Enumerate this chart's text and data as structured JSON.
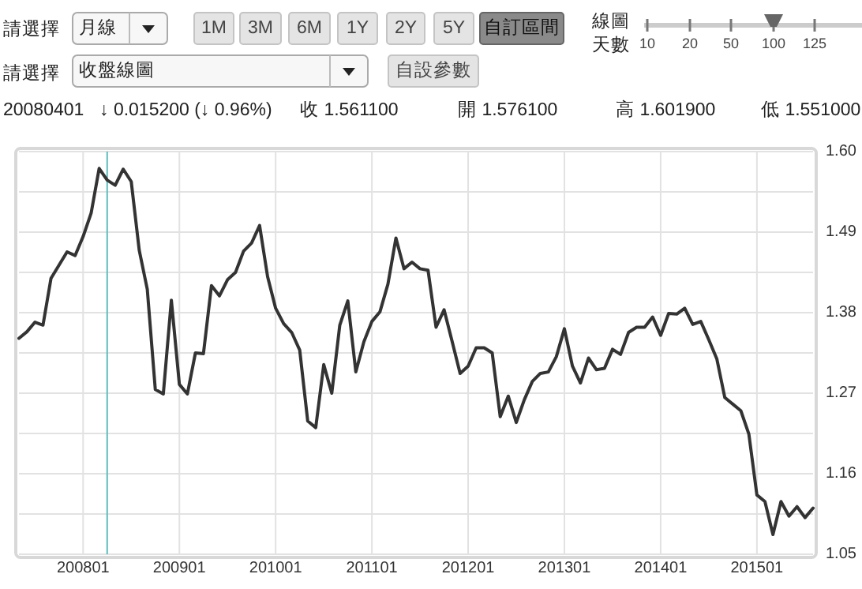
{
  "chart_data": {
    "type": "line",
    "x": [
      "2007-05",
      "2007-06",
      "2007-07",
      "2007-08",
      "2007-09",
      "2007-10",
      "2007-11",
      "2007-12",
      "2008-01",
      "2008-02",
      "2008-03",
      "2008-04",
      "2008-05",
      "2008-06",
      "2008-07",
      "2008-08",
      "2008-09",
      "2008-10",
      "2008-11",
      "2008-12",
      "2009-01",
      "2009-02",
      "2009-03",
      "2009-04",
      "2009-05",
      "2009-06",
      "2009-07",
      "2009-08",
      "2009-09",
      "2009-10",
      "2009-11",
      "2009-12",
      "2010-01",
      "2010-02",
      "2010-03",
      "2010-04",
      "2010-05",
      "2010-06",
      "2010-07",
      "2010-08",
      "2010-09",
      "2010-10",
      "2010-11",
      "2010-12",
      "2011-01",
      "2011-02",
      "2011-03",
      "2011-04",
      "2011-05",
      "2011-06",
      "2011-07",
      "2011-08",
      "2011-09",
      "2011-10",
      "2011-11",
      "2011-12",
      "2012-01",
      "2012-02",
      "2012-03",
      "2012-04",
      "2012-05",
      "2012-06",
      "2012-07",
      "2012-08",
      "2012-09",
      "2012-10",
      "2012-11",
      "2012-12",
      "2013-01",
      "2013-02",
      "2013-03",
      "2013-04",
      "2013-05",
      "2013-06",
      "2013-07",
      "2013-08",
      "2013-09",
      "2013-10",
      "2013-11",
      "2013-12",
      "2014-01",
      "2014-02",
      "2014-03",
      "2014-04",
      "2014-05",
      "2014-06",
      "2014-07",
      "2014-08",
      "2014-09",
      "2014-10",
      "2014-11",
      "2014-12",
      "2015-01",
      "2015-02",
      "2015-03",
      "2015-04",
      "2015-05",
      "2015-06",
      "2015-07",
      "2015-08"
    ],
    "series": [
      {
        "color": "#333333",
        "values": [
          1.345,
          1.354,
          1.367,
          1.363,
          1.427,
          1.445,
          1.463,
          1.458,
          1.484,
          1.516,
          1.577,
          1.561,
          1.554,
          1.576,
          1.559,
          1.465,
          1.412,
          1.275,
          1.269,
          1.397,
          1.282,
          1.269,
          1.325,
          1.324,
          1.417,
          1.403,
          1.425,
          1.435,
          1.464,
          1.475,
          1.499,
          1.429,
          1.386,
          1.365,
          1.353,
          1.329,
          1.232,
          1.223,
          1.309,
          1.27,
          1.363,
          1.396,
          1.299,
          1.34,
          1.368,
          1.381,
          1.419,
          1.482,
          1.44,
          1.449,
          1.44,
          1.438,
          1.36,
          1.384,
          1.341,
          1.297,
          1.307,
          1.332,
          1.332,
          1.325,
          1.238,
          1.266,
          1.23,
          1.261,
          1.286,
          1.297,
          1.299,
          1.32,
          1.358,
          1.307,
          1.284,
          1.318,
          1.302,
          1.304,
          1.33,
          1.323,
          1.353,
          1.36,
          1.36,
          1.374,
          1.349,
          1.379,
          1.378,
          1.386,
          1.364,
          1.368,
          1.343,
          1.317,
          1.264,
          1.255,
          1.246,
          1.214,
          1.131,
          1.122,
          1.077,
          1.122,
          1.102,
          1.115,
          1.1,
          1.113
        ]
      }
    ],
    "xlim": [
      "2007-05",
      "2015-08"
    ],
    "xticks": [
      {
        "value": "2008-01",
        "label": "200801"
      },
      {
        "value": "2009-01",
        "label": "200901"
      },
      {
        "value": "2010-01",
        "label": "201001"
      },
      {
        "value": "2011-01",
        "label": "201101"
      },
      {
        "value": "2012-01",
        "label": "201201"
      },
      {
        "value": "2013-01",
        "label": "201301"
      },
      {
        "value": "2014-01",
        "label": "201401"
      },
      {
        "value": "2015-01",
        "label": "201501"
      }
    ],
    "ylim": [
      1.05,
      1.6
    ],
    "yticks": [
      1.05,
      {
        "value": 1.105,
        "label": null
      },
      1.16,
      {
        "value": 1.215,
        "label": null
      },
      1.27,
      {
        "value": 1.325,
        "label": null
      },
      1.38,
      {
        "value": 1.435,
        "label": null
      },
      1.49,
      {
        "value": 1.545,
        "label": null
      },
      {
        "value": 1.6,
        "label": "1.60"
      }
    ],
    "grid": true,
    "ref_lines": [
      {
        "axis": "x",
        "value": "2008-04",
        "color": "#4fc3c3"
      }
    ],
    "annotations": [
      "請選擇",
      "月線",
      "1M",
      "3M",
      "6M",
      "1Y",
      "2Y",
      "5Y",
      "自訂區間",
      "線圖",
      "天數",
      "10",
      "20",
      "50",
      "100",
      "125",
      "請選擇",
      "收盤線圖",
      "自設參數",
      "20080401",
      "↓ 0.015200 (↓ 0.96%)",
      "收 1.561100",
      "開 1.576100",
      "高 1.601900",
      "低 1.551000"
    ]
  }
}
